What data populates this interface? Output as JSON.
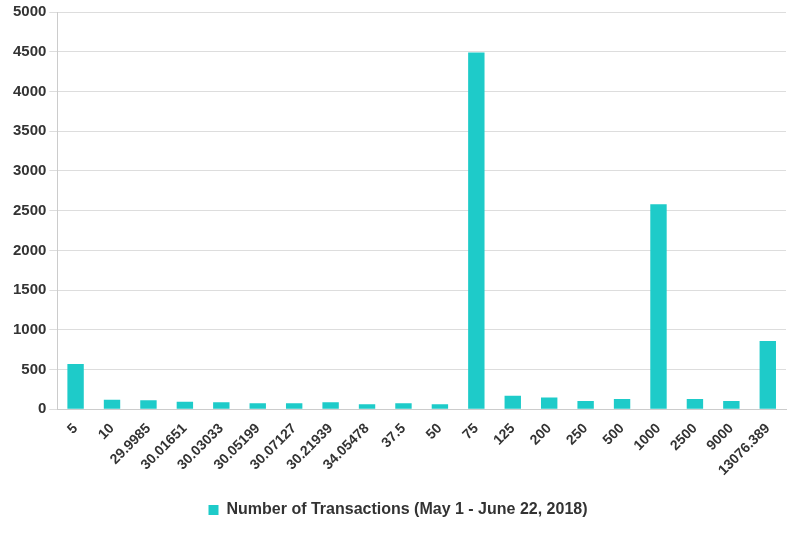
{
  "chart_data": {
    "type": "bar",
    "categories": [
      "5",
      "10",
      "29.9985",
      "30.01651",
      "30.03033",
      "30.05199",
      "30.07127",
      "30.21939",
      "34.05478",
      "37.5",
      "50",
      "75",
      "125",
      "200",
      "250",
      "500",
      "1000",
      "2500",
      "9000",
      "13076.389"
    ],
    "series": [
      {
        "name": "Number of Transactions (May 1 - June 22, 2018)",
        "color": "#1ecbc9",
        "values": [
          570,
          120,
          115,
          95,
          90,
          75,
          75,
          90,
          65,
          75,
          65,
          4490,
          170,
          150,
          105,
          130,
          2580,
          130,
          105,
          860
        ]
      }
    ],
    "ylim": [
      0,
      5000
    ],
    "yticks": [
      0,
      500,
      1000,
      1500,
      2000,
      2500,
      3000,
      3500,
      4000,
      4500,
      5000
    ],
    "grid": true,
    "legend": "bottom"
  }
}
